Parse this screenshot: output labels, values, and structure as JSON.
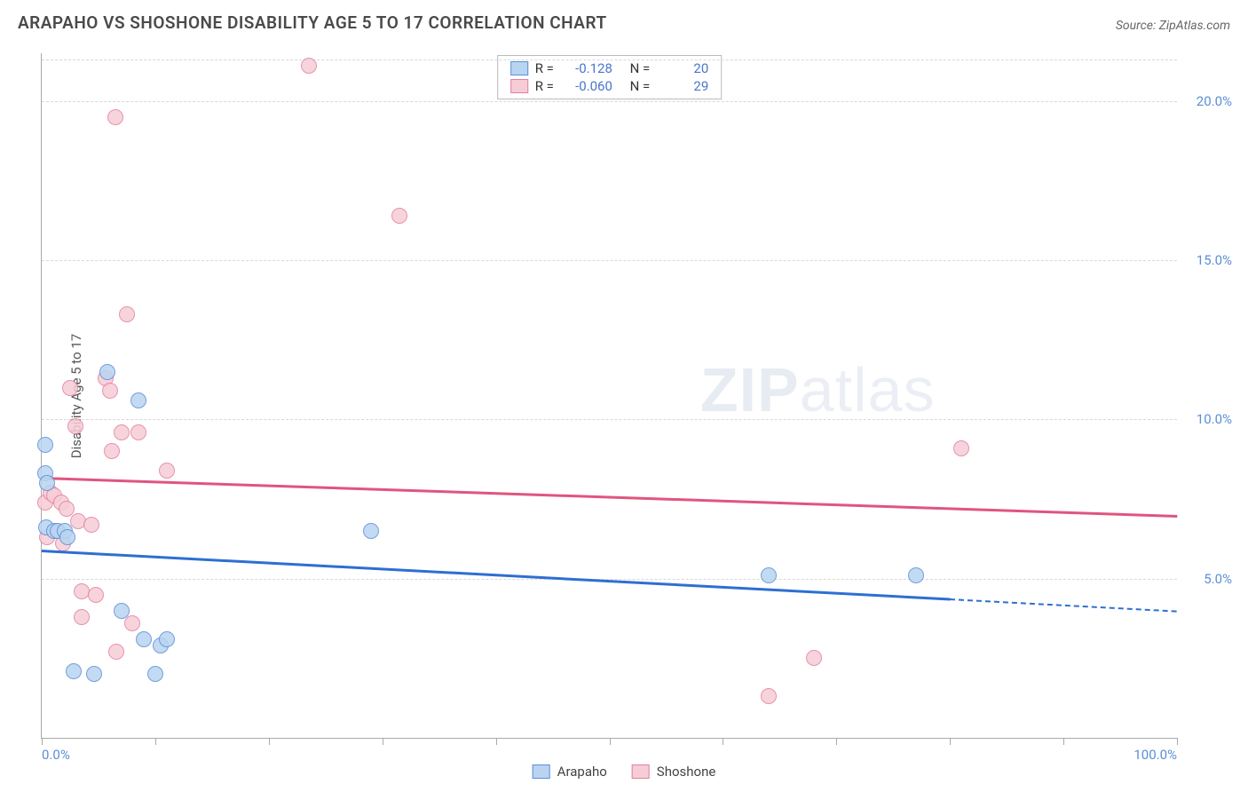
{
  "title": "ARAPAHO VS SHOSHONE DISABILITY AGE 5 TO 17 CORRELATION CHART",
  "source_label": "Source:",
  "source_name": "ZipAtlas.com",
  "ylabel": "Disability Age 5 to 17",
  "watermark_bold": "ZIP",
  "watermark_rest": "atlas",
  "chart": {
    "type": "scatter",
    "xlim": [
      0,
      100
    ],
    "ylim": [
      0,
      21.5
    ],
    "background_color": "#ffffff",
    "grid_color": "#d8d8d8",
    "axis_color": "#aaaaaa",
    "ytick_labels": [
      {
        "v": 5,
        "label": "5.0%"
      },
      {
        "v": 10,
        "label": "10.0%"
      },
      {
        "v": 15,
        "label": "15.0%"
      },
      {
        "v": 20,
        "label": "20.0%"
      }
    ],
    "yticks_grid": [
      5,
      10,
      15,
      20,
      21.3
    ],
    "xticks": [
      0,
      10,
      20,
      30,
      40,
      50,
      60,
      70,
      80,
      90,
      100
    ],
    "xtick_labels": [
      {
        "v": 0,
        "label": "0.0%",
        "cls": "leftlab"
      },
      {
        "v": 100,
        "label": "100.0%",
        "cls": "rightlab"
      }
    ],
    "point_radius": 9,
    "series": {
      "arapaho": {
        "label": "Arapaho",
        "fill": "#b9d4f1",
        "stroke": "#5a8fd6",
        "line_color": "#2e6fd1",
        "trend": {
          "y_left": 5.9,
          "y_right": 4.0,
          "solid_until_x": 80
        },
        "R": "-0.128",
        "N": "20",
        "points": [
          {
            "x": 0.3,
            "y": 8.3
          },
          {
            "x": 0.5,
            "y": 8.0
          },
          {
            "x": 0.3,
            "y": 9.2
          },
          {
            "x": 0.4,
            "y": 6.6
          },
          {
            "x": 1.1,
            "y": 6.5
          },
          {
            "x": 1.4,
            "y": 6.5
          },
          {
            "x": 2.0,
            "y": 6.5
          },
          {
            "x": 5.8,
            "y": 11.5
          },
          {
            "x": 8.5,
            "y": 10.6
          },
          {
            "x": 2.8,
            "y": 2.1
          },
          {
            "x": 4.6,
            "y": 2.0
          },
          {
            "x": 7.0,
            "y": 4.0
          },
          {
            "x": 9.0,
            "y": 3.1
          },
          {
            "x": 10.5,
            "y": 2.9
          },
          {
            "x": 11.0,
            "y": 3.1
          },
          {
            "x": 10.0,
            "y": 2.0
          },
          {
            "x": 29.0,
            "y": 6.5
          },
          {
            "x": 64.0,
            "y": 5.1
          },
          {
            "x": 77.0,
            "y": 5.1
          },
          {
            "x": 2.3,
            "y": 6.3
          }
        ]
      },
      "shoshone": {
        "label": "Shoshone",
        "fill": "#f6cdd7",
        "stroke": "#e37fa0",
        "line_color": "#e0557f",
        "trend": {
          "y_left": 8.2,
          "y_right": 7.0,
          "solid_until_x": 100
        },
        "R": "-0.060",
        "N": "29",
        "points": [
          {
            "x": 0.3,
            "y": 7.4
          },
          {
            "x": 0.8,
            "y": 7.7
          },
          {
            "x": 1.1,
            "y": 7.6
          },
          {
            "x": 1.7,
            "y": 7.4
          },
          {
            "x": 2.2,
            "y": 7.2
          },
          {
            "x": 0.5,
            "y": 6.3
          },
          {
            "x": 1.9,
            "y": 6.1
          },
          {
            "x": 3.2,
            "y": 6.8
          },
          {
            "x": 4.4,
            "y": 6.7
          },
          {
            "x": 3.0,
            "y": 9.8
          },
          {
            "x": 2.5,
            "y": 11.0
          },
          {
            "x": 5.6,
            "y": 11.3
          },
          {
            "x": 6.0,
            "y": 10.9
          },
          {
            "x": 7.0,
            "y": 9.6
          },
          {
            "x": 8.5,
            "y": 9.6
          },
          {
            "x": 6.2,
            "y": 9.0
          },
          {
            "x": 11.0,
            "y": 8.4
          },
          {
            "x": 7.5,
            "y": 13.3
          },
          {
            "x": 3.5,
            "y": 4.6
          },
          {
            "x": 4.8,
            "y": 4.5
          },
          {
            "x": 3.5,
            "y": 3.8
          },
          {
            "x": 8.0,
            "y": 3.6
          },
          {
            "x": 6.6,
            "y": 2.7
          },
          {
            "x": 6.5,
            "y": 19.5
          },
          {
            "x": 23.5,
            "y": 21.1
          },
          {
            "x": 31.5,
            "y": 16.4
          },
          {
            "x": 68.0,
            "y": 2.5
          },
          {
            "x": 64.0,
            "y": 1.3
          },
          {
            "x": 81.0,
            "y": 9.1
          }
        ]
      }
    }
  },
  "corr_legend": {
    "r_label": "R =",
    "n_label": "N ="
  }
}
